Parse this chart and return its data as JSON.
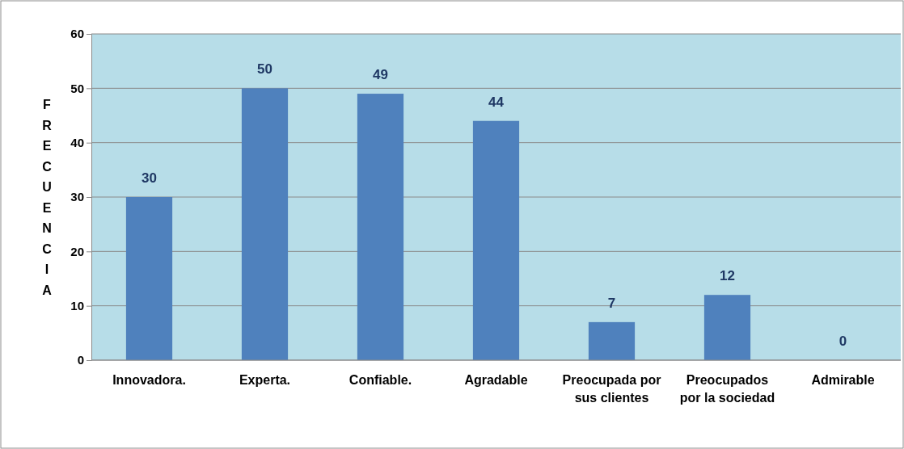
{
  "chart_data": {
    "type": "bar",
    "ylabel": "FRECUENCIA",
    "categories": [
      "Innovadora.",
      "Experta.",
      "Confiable.",
      "Agradable",
      "Preocupada por sus clientes",
      "Preocupados por la sociedad",
      "Admirable"
    ],
    "values": [
      30,
      50,
      49,
      44,
      7,
      12,
      0
    ],
    "color": "#4f81bd",
    "ylim": [
      0,
      60
    ],
    "yticks": [
      0,
      10,
      20,
      30,
      40,
      50,
      60
    ],
    "grid": "y",
    "data_labels": true
  }
}
